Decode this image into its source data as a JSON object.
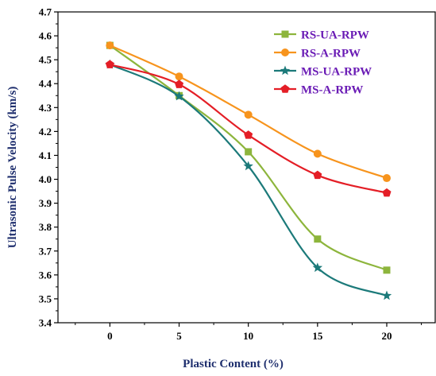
{
  "chart_data": {
    "type": "line",
    "title": "",
    "xlabel": "Plastic Content (%)",
    "ylabel": "Ultrasonic Pulse Velocity (km/s)",
    "x": [
      0,
      5,
      10,
      15,
      20
    ],
    "xlim": [
      -3.75,
      23.5
    ],
    "ylim": [
      3.4,
      4.7
    ],
    "x_ticks": [
      "0",
      "5",
      "10",
      "15",
      "20"
    ],
    "y_ticks": [
      "3.4",
      "3.5",
      "3.6",
      "3.7",
      "3.8",
      "3.9",
      "4.0",
      "4.1",
      "4.2",
      "4.3",
      "4.4",
      "4.5",
      "4.6",
      "4.7"
    ],
    "grid": false,
    "legend_position": "top-right",
    "series": [
      {
        "name": "RS-UA-RPW",
        "values": [
          4.56,
          4.35,
          4.115,
          3.75,
          3.62
        ],
        "color": "#8DB53C",
        "marker": "square"
      },
      {
        "name": "RS-A-RPW",
        "values": [
          4.56,
          4.43,
          4.27,
          4.107,
          4.005
        ],
        "color": "#F7941D",
        "marker": "circle"
      },
      {
        "name": "MS-UA-RPW",
        "values": [
          4.48,
          4.347,
          4.055,
          3.63,
          3.513
        ],
        "color": "#1C7A7A",
        "marker": "star"
      },
      {
        "name": "MS-A-RPW",
        "values": [
          4.48,
          4.397,
          4.185,
          4.017,
          3.943
        ],
        "color": "#E41E26",
        "marker": "pentagon"
      }
    ],
    "legend_text_color": "#6A1BB5",
    "axis_title_color": "#1F2F6E"
  }
}
